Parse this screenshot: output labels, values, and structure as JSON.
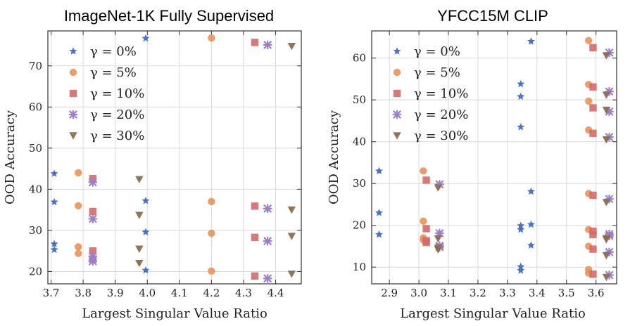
{
  "chart_data": [
    {
      "type": "scatter",
      "title": "ImageNet-1K Fully Supervised",
      "xlabel": "Largest Singular Value Ratio",
      "ylabel": "OOD Accuracy",
      "xlim": [
        3.69,
        4.48
      ],
      "ylim": [
        17,
        78.5
      ],
      "xticks": [
        3.7,
        3.8,
        3.9,
        4.0,
        4.1,
        4.2,
        4.3,
        4.4
      ],
      "xtick_labels": [
        "3.7",
        "3.8",
        "3.9",
        "4.0",
        "4.1",
        "4.2",
        "4.3",
        "4.4"
      ],
      "yticks": [
        20,
        30,
        40,
        50,
        60,
        70
      ],
      "ytick_labels": [
        "20",
        "30",
        "40",
        "50",
        "60",
        "70"
      ],
      "grid": true,
      "legend_position": "upper-left",
      "series": [
        {
          "name": "γ = 0%",
          "marker": "star",
          "color": "#4a72c4",
          "points": [
            [
              3.71,
              43.8
            ],
            [
              3.71,
              36.9
            ],
            [
              3.71,
              26.7
            ],
            [
              3.71,
              25.3
            ],
            [
              3.995,
              76.7
            ],
            [
              3.995,
              37.2
            ],
            [
              3.995,
              29.6
            ],
            [
              3.995,
              20.3
            ]
          ]
        },
        {
          "name": "γ = 5%",
          "marker": "circle",
          "color": "#e8935a",
          "points": [
            [
              3.785,
              44.0
            ],
            [
              3.785,
              36.0
            ],
            [
              3.785,
              26.0
            ],
            [
              3.785,
              24.4
            ],
            [
              4.2,
              76.8
            ],
            [
              4.2,
              37.0
            ],
            [
              4.2,
              29.3
            ],
            [
              4.2,
              20.1
            ]
          ]
        },
        {
          "name": "γ = 10%",
          "marker": "square",
          "color": "#d46a6a",
          "points": [
            [
              3.83,
              42.6
            ],
            [
              3.83,
              34.6
            ],
            [
              3.83,
              25.0
            ],
            [
              3.83,
              23.0
            ],
            [
              4.335,
              75.7
            ],
            [
              4.335,
              35.9
            ],
            [
              4.335,
              28.3
            ],
            [
              4.335,
              18.9
            ]
          ]
        },
        {
          "name": "γ = 20%",
          "marker": "plus",
          "color": "#9b80c8",
          "points": [
            [
              3.83,
              41.7
            ],
            [
              3.83,
              32.8
            ],
            [
              3.83,
              23.7
            ],
            [
              3.83,
              22.5
            ],
            [
              4.375,
              75.1
            ],
            [
              4.375,
              35.3
            ],
            [
              4.375,
              27.4
            ],
            [
              4.375,
              18.3
            ]
          ]
        },
        {
          "name": "γ = 30%",
          "marker": "triangle-down",
          "color": "#8b6e52",
          "points": [
            [
              3.975,
              42.4
            ],
            [
              3.975,
              33.7
            ],
            [
              3.975,
              25.5
            ],
            [
              3.975,
              22.0
            ],
            [
              4.45,
              74.8
            ],
            [
              4.45,
              35.0
            ],
            [
              4.45,
              28.6
            ],
            [
              4.45,
              19.4
            ]
          ]
        }
      ]
    },
    {
      "type": "scatter",
      "title": "YFCC15M CLIP",
      "xlabel": "Largest Singular Value Ratio",
      "ylabel": "OOD Accuracy",
      "xlim": [
        2.84,
        3.67
      ],
      "ylim": [
        6,
        66.5
      ],
      "xticks": [
        2.9,
        3.0,
        3.1,
        3.2,
        3.3,
        3.4,
        3.5,
        3.6
      ],
      "xtick_labels": [
        "2.9",
        "3.0",
        "3.1",
        "3.2",
        "3.3",
        "3.4",
        "3.5",
        "3.6"
      ],
      "yticks": [
        10,
        20,
        30,
        40,
        50,
        60
      ],
      "ytick_labels": [
        "10",
        "20",
        "30",
        "40",
        "50",
        "60"
      ],
      "grid": true,
      "legend_position": "upper-left",
      "series": [
        {
          "name": "γ = 0%",
          "marker": "star",
          "color": "#4a72c4",
          "points": [
            [
              2.865,
              33.0
            ],
            [
              2.865,
              23.0
            ],
            [
              2.865,
              17.8
            ],
            [
              3.345,
              53.8
            ],
            [
              3.345,
              50.8
            ],
            [
              3.345,
              43.5
            ],
            [
              3.345,
              19.9
            ],
            [
              3.345,
              19.0
            ],
            [
              3.345,
              10.1
            ],
            [
              3.345,
              9.2
            ],
            [
              3.38,
              64.0
            ],
            [
              3.38,
              28.1
            ],
            [
              3.38,
              20.2
            ],
            [
              3.38,
              15.2
            ]
          ]
        },
        {
          "name": "γ = 5%",
          "marker": "circle",
          "color": "#e8935a",
          "points": [
            [
              3.015,
              33.0
            ],
            [
              3.015,
              21.0
            ],
            [
              3.015,
              17.0
            ],
            [
              3.015,
              16.5
            ],
            [
              3.575,
              64.2
            ],
            [
              3.575,
              53.7
            ],
            [
              3.575,
              49.7
            ],
            [
              3.575,
              42.8
            ],
            [
              3.575,
              27.6
            ],
            [
              3.575,
              19.0
            ],
            [
              3.575,
              15.0
            ],
            [
              3.575,
              9.4
            ],
            [
              3.575,
              8.6
            ]
          ]
        },
        {
          "name": "γ = 10%",
          "marker": "square",
          "color": "#d46a6a",
          "points": [
            [
              3.025,
              30.8
            ],
            [
              3.025,
              19.2
            ],
            [
              3.025,
              16.3
            ],
            [
              3.025,
              15.9
            ],
            [
              3.59,
              62.5
            ],
            [
              3.59,
              53.1
            ],
            [
              3.59,
              48.1
            ],
            [
              3.59,
              42.0
            ],
            [
              3.59,
              27.2
            ],
            [
              3.59,
              18.6
            ],
            [
              3.59,
              17.8
            ],
            [
              3.59,
              14.3
            ],
            [
              3.59,
              8.3
            ]
          ]
        },
        {
          "name": "γ = 20%",
          "marker": "plus",
          "color": "#9b80c8",
          "points": [
            [
              3.07,
              29.8
            ],
            [
              3.07,
              18.1
            ],
            [
              3.07,
              15.1
            ],
            [
              3.07,
              14.8
            ],
            [
              3.645,
              61.3
            ],
            [
              3.645,
              52.0
            ],
            [
              3.645,
              47.2
            ],
            [
              3.645,
              41.1
            ],
            [
              3.645,
              26.3
            ],
            [
              3.645,
              17.9
            ],
            [
              3.645,
              17.5
            ],
            [
              3.645,
              13.6
            ],
            [
              3.645,
              8.1
            ]
          ]
        },
        {
          "name": "γ = 30%",
          "marker": "triangle-down",
          "color": "#8b6e52",
          "points": [
            [
              3.065,
              29.0
            ],
            [
              3.065,
              16.8
            ],
            [
              3.065,
              14.6
            ],
            [
              3.065,
              14.2
            ],
            [
              3.635,
              60.6
            ],
            [
              3.635,
              51.2
            ],
            [
              3.635,
              47.6
            ],
            [
              3.635,
              40.5
            ],
            [
              3.635,
              25.5
            ],
            [
              3.635,
              16.9
            ],
            [
              3.635,
              16.6
            ],
            [
              3.635,
              12.8
            ],
            [
              3.635,
              7.6
            ]
          ]
        }
      ]
    }
  ]
}
